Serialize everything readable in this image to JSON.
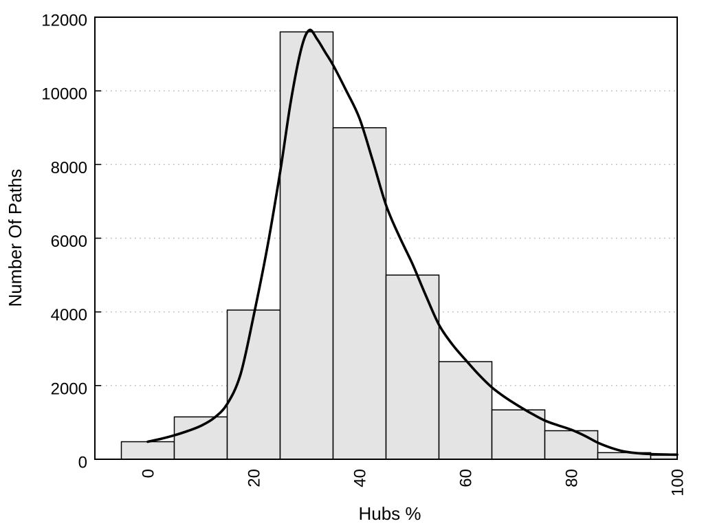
{
  "chart_data": {
    "type": "bar",
    "subtype": "histogram-with-smooth-curve",
    "title": "",
    "xlabel": "Hubs %",
    "ylabel": "Number Of Paths",
    "xlim": [
      -10,
      100
    ],
    "ylim": [
      0,
      12000
    ],
    "x_ticks": [
      0,
      20,
      40,
      60,
      80,
      100
    ],
    "y_ticks": [
      0,
      2000,
      4000,
      6000,
      8000,
      10000,
      12000
    ],
    "x_tick_rotation_deg": -90,
    "grid": "horizontal dotted gridlines at 2000..10000, plot boxed on all four sides, ticks point inward",
    "legend": "none",
    "bin_width": 10,
    "bars": [
      {
        "center": 0,
        "count": 475
      },
      {
        "center": 10,
        "count": 1150
      },
      {
        "center": 20,
        "count": 4050
      },
      {
        "center": 30,
        "count": 11600
      },
      {
        "center": 40,
        "count": 9000
      },
      {
        "center": 50,
        "count": 5000
      },
      {
        "center": 60,
        "count": 2650
      },
      {
        "center": 70,
        "count": 1340
      },
      {
        "center": 80,
        "count": 775
      },
      {
        "center": 90,
        "count": 180
      },
      {
        "center": 100,
        "count": 110
      }
    ],
    "curve_points": [
      [
        0,
        475
      ],
      [
        2.5,
        555
      ],
      [
        5,
        650
      ],
      [
        7.5,
        765
      ],
      [
        10,
        905
      ],
      [
        12.5,
        1120
      ],
      [
        15,
        1500
      ],
      [
        17.5,
        2300
      ],
      [
        20,
        3900
      ],
      [
        22.5,
        5700
      ],
      [
        25,
        7800
      ],
      [
        27,
        9700
      ],
      [
        29,
        11150
      ],
      [
        30.5,
        11650
      ],
      [
        32,
        11400
      ],
      [
        33.5,
        11050
      ],
      [
        35,
        10700
      ],
      [
        37.5,
        10000
      ],
      [
        40,
        9250
      ],
      [
        42.5,
        8100
      ],
      [
        45,
        6900
      ],
      [
        47.5,
        6050
      ],
      [
        50,
        5300
      ],
      [
        52.5,
        4450
      ],
      [
        55,
        3650
      ],
      [
        57.5,
        3120
      ],
      [
        60,
        2700
      ],
      [
        62.5,
        2300
      ],
      [
        65,
        1950
      ],
      [
        67.5,
        1680
      ],
      [
        70,
        1450
      ],
      [
        72.5,
        1240
      ],
      [
        75,
        1050
      ],
      [
        77.5,
        920
      ],
      [
        80,
        800
      ],
      [
        82.5,
        640
      ],
      [
        85,
        450
      ],
      [
        87.5,
        310
      ],
      [
        90,
        210
      ],
      [
        92.5,
        165
      ],
      [
        95,
        140
      ],
      [
        97.5,
        130
      ],
      [
        100,
        125
      ]
    ],
    "colors": {
      "background": "#ffffff",
      "bar_fill": "#e4e4e4",
      "bar_border": "#000000",
      "curve": "#000000",
      "grid": "#b3b3b3",
      "axis": "#000000",
      "text": "#000000"
    }
  }
}
